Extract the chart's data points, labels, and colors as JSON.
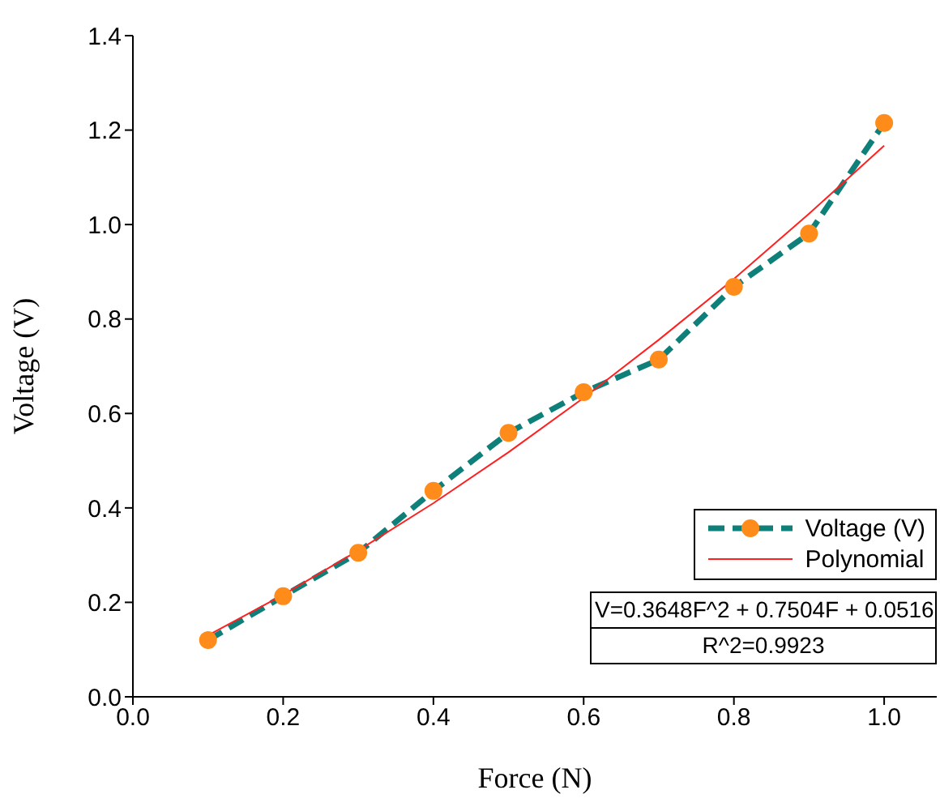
{
  "chart_data": {
    "type": "line",
    "xlabel": "Force (N)",
    "ylabel": "Voltage (V)",
    "x": [
      0.1,
      0.2,
      0.3,
      0.4,
      0.5,
      0.6,
      0.7,
      0.8,
      0.9,
      1.0
    ],
    "series": [
      {
        "name": "Voltage (V)",
        "color": "#0f7f7a",
        "colors": [
          "#ff8c1a",
          "#ff8c1a",
          "#ff8c1a",
          "#ff8c1a",
          "#ff8c1a",
          "#ff8c1a",
          "#ff8c1a",
          "#ff8c1a",
          "#ff8c1a",
          "#ff8c1a"
        ],
        "marker": "circle",
        "line_style": "dashed",
        "values": [
          0.12,
          0.213,
          0.305,
          0.436,
          0.559,
          0.645,
          0.714,
          0.868,
          0.981,
          1.215
        ]
      },
      {
        "name": "Polynomial",
        "color": "#ff2020",
        "marker": "none",
        "line_style": "solid",
        "values": [
          0.13,
          0.216,
          0.31,
          0.41,
          0.518,
          0.633,
          0.756,
          0.885,
          1.023,
          1.167
        ]
      }
    ],
    "xlim": [
      0,
      1.07
    ],
    "xticks": [
      {
        "value": 0,
        "label": "0.0"
      },
      {
        "value": 0.2,
        "label": "0.2"
      },
      {
        "value": 0.4,
        "label": "0.4"
      },
      {
        "value": 0.6,
        "label": "0.6"
      },
      {
        "value": 0.8,
        "label": "0.8"
      },
      {
        "value": 1.0,
        "label": "1.0"
      }
    ],
    "ylim": [
      0,
      1.4
    ],
    "yticks": [
      {
        "value": 0,
        "label": "0.0"
      },
      {
        "value": 0.2,
        "label": "0.2"
      },
      {
        "value": 0.4,
        "label": "0.4"
      },
      {
        "value": 0.6,
        "label": "0.6"
      },
      {
        "value": 0.8,
        "label": "0.8"
      },
      {
        "value": 1.0,
        "label": "1.0"
      },
      {
        "value": 1.2,
        "label": "1.2"
      },
      {
        "value": 1.4,
        "label": "1.4"
      }
    ],
    "grid": false,
    "legend": "bottom right",
    "annotations": [
      "V=0.3648F^2 + 0.7504F + 0.0516",
      "R^2=0.9923"
    ]
  }
}
